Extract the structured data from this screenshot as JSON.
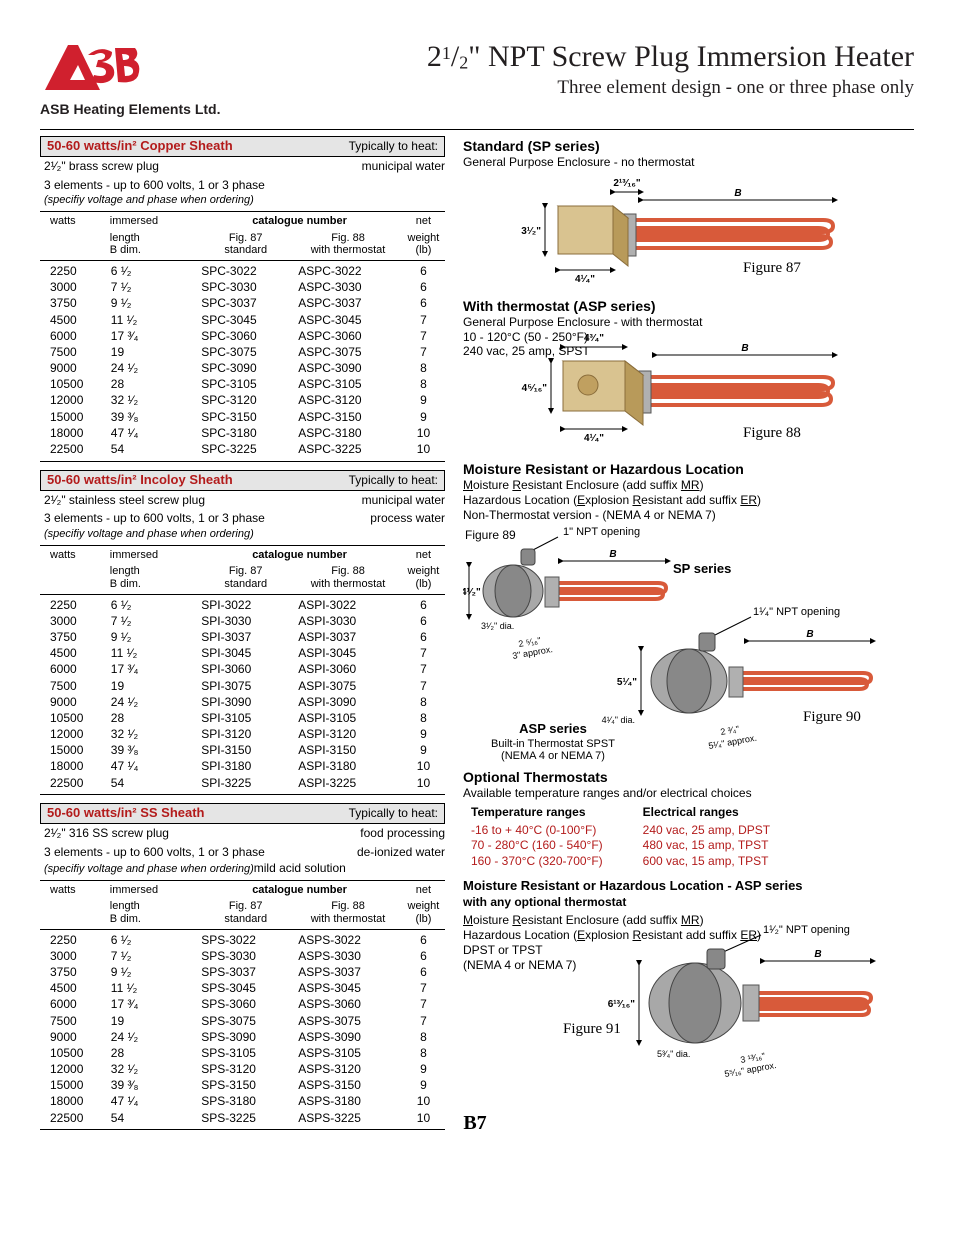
{
  "company": "ASB Heating Elements Ltd.",
  "title_prefix": "2",
  "title_frac_n": "1",
  "title_frac_d": "2",
  "title_rest": "\" NPT Screw Plug Immersion Heater",
  "subtitle": "Three element design - one or three phase only",
  "page_num": "B7",
  "sections": [
    {
      "key": "copper",
      "bar_main": "50-60 watts/in²  Copper Sheath",
      "bar_heat": "Typically to heat:",
      "plug_line": "2¹⁄₂\" brass screw plug",
      "plug_right": "municipal water",
      "elem_line": "3 elements - up to 600 volts, 1 or 3 phase",
      "elem_right": "",
      "ital": "(specifiy voltage and phase when ordering)",
      "ital_right": "",
      "prefix_std": "SPC-",
      "prefix_therm": "ASPC-"
    },
    {
      "key": "incoloy",
      "bar_main": "50-60 watts/in²  Incoloy Sheath",
      "bar_heat": "Typically to heat:",
      "plug_line": "2¹⁄₂\" stainless steel screw plug",
      "plug_right": "municipal water",
      "elem_line": "3 elements - up to 600 volts, 1 or 3 phase",
      "elem_right": "process water",
      "ital": "(specifiy voltage and phase when ordering)",
      "ital_right": "",
      "prefix_std": "SPI-",
      "prefix_therm": "ASPI-"
    },
    {
      "key": "ss",
      "bar_main": "50-60 watts/in²  SS Sheath",
      "bar_heat": "Typically to heat:",
      "plug_line": "2¹⁄₂\" 316 SS screw plug",
      "plug_right": "food processing",
      "elem_line": "3 elements - up to 600 volts, 1 or 3 phase",
      "elem_right": "de-ionized water",
      "ital": "(specifiy voltage and phase when ordering)",
      "ital_right": "mild acid solution",
      "prefix_std": "SPS-",
      "prefix_therm": "ASPS-"
    }
  ],
  "table_headers": {
    "watts": "watts",
    "immersed1": "immersed",
    "immersed2": "length",
    "immersed3": "B dim.",
    "cat_num": "catalogue number",
    "fig87a": "Fig. 87",
    "fig87b": "standard",
    "fig88a": "Fig. 88",
    "fig88b": "with thermostat",
    "net1": "net",
    "net2": "weight",
    "net3": "(lb)"
  },
  "rows": [
    {
      "w": "2250",
      "len": "6 ¹⁄₂",
      "code": "3022",
      "wt": "6"
    },
    {
      "w": "3000",
      "len": "7 ¹⁄₂",
      "code": "3030",
      "wt": "6"
    },
    {
      "w": "3750",
      "len": "9 ¹⁄₂",
      "code": "3037",
      "wt": "6"
    },
    {
      "w": "4500",
      "len": "11 ¹⁄₂",
      "code": "3045",
      "wt": "7"
    },
    {
      "w": "6000",
      "len": "17 ³⁄₄",
      "code": "3060",
      "wt": "7"
    },
    {
      "w": "7500",
      "len": "19",
      "code": "3075",
      "wt": "7"
    },
    {
      "w": "9000",
      "len": "24 ¹⁄₂",
      "code": "3090",
      "wt": "8"
    },
    {
      "w": "10500",
      "len": "28",
      "code": "3105",
      "wt": "8"
    },
    {
      "w": "12000",
      "len": "32 ¹⁄₂",
      "code": "3120",
      "wt": "9"
    },
    {
      "w": "15000",
      "len": "39 ³⁄₈",
      "code": "3150",
      "wt": "9"
    },
    {
      "w": "18000",
      "len": "47 ¹⁄₄",
      "code": "3180",
      "wt": "10"
    },
    {
      "w": "22500",
      "len": "54",
      "code": "3225",
      "wt": "10"
    }
  ],
  "right": {
    "std_h": "Standard (SP series)",
    "std_p": "General Purpose Enclosure - no thermostat",
    "fig87": "Figure 87",
    "therm_h": "With thermostat (ASP series)",
    "therm_p": "General Purpose Enclosure - with thermostat",
    "therm_range": "10 - 120°C (50 - 250°F)",
    "therm_elec": "240 vac, 25 amp, SPST",
    "fig88": "Figure 88",
    "moist_h": "Moisture Resistant or Hazardous Location",
    "moist_l1a": "M",
    "moist_l1b": "oisture ",
    "moist_l1c": "R",
    "moist_l1d": "esistant Enclosure (add suffix ",
    "moist_l1e": "MR",
    "moist_l1f": ")",
    "moist_l2a": "Hazardous Location (",
    "moist_l2b": "E",
    "moist_l2c": "xplosion ",
    "moist_l2d": "R",
    "moist_l2e": "esistant add suffix  ",
    "moist_l2f": "ER",
    "moist_l2g": ")",
    "moist_l3": "Non-Thermostat version  -  (NEMA 4 or NEMA 7)",
    "fig89": "Figure 89",
    "fig89_npt": "1\" NPT opening",
    "sp_series": "SP series",
    "fig90": "Figure 90",
    "fig90_npt": "1¹⁄₄\" NPT opening",
    "asp_series": "ASP series",
    "asp_l1": "Built-in Thermostat SPST",
    "asp_l2": "(NEMA 4 or NEMA 7)",
    "opt_h": "Optional Thermostats",
    "opt_p": "Available temperature ranges and/or electrical choices",
    "temp_h": "Temperature ranges",
    "temp_1": "-16 to + 40°C (0-100°F)",
    "temp_2": "70 - 280°C (160 - 540°F)",
    "temp_3": "160 - 370°C (320-700°F)",
    "elec_h": "Electrical ranges",
    "elec_1": "240 vac, 25 amp, DPST",
    "elec_2": "480 vac, 15 amp, TPST",
    "elec_3": "600 vac, 15 amp, TPST",
    "moist2_h": "Moisture Resistant or Hazardous Location - ASP series",
    "moist2_sub": "with any optional thermostat",
    "moist2_l3": "DPST or TPST",
    "moist2_l4": "(NEMA 4 or NEMA 7)",
    "fig91": "Figure 91",
    "fig91_npt": "1¹⁄₂\" NPT opening",
    "dim_2_13_16": "2¹³⁄₁₆\"",
    "dim_B": "B",
    "dim_3_1_2": "3¹⁄₂\"",
    "dim_4_1_4": "4¹⁄₄\"",
    "dim_4_3_4": "4³⁄₄\"",
    "dim_4_5_16": "4⁵⁄₁₆\"",
    "dim_4_1_2": "4¹⁄₂\"",
    "dim_3_1_2d": "3¹⁄₂\" dia.",
    "dim_2_5_16": "2 ⁵⁄₁₆\"",
    "dim_3_approx": "3\" approx.",
    "dim_5_1_4": "5¹⁄₄\"",
    "dim_4_1_4d": "4¹⁄₄\" dia.",
    "dim_2_3_4": "2 ³⁄₄\"",
    "dim_5_1_4_approx": "5¹⁄₄\" approx.",
    "dim_6_13_16": "6¹³⁄₁₆\"",
    "dim_5_3_4d": "5³⁄₄\" dia.",
    "dim_3_13_16": "3 ¹³⁄₁₆\"",
    "dim_5_5_16_approx": "5⁵⁄₁₆\" approx."
  }
}
